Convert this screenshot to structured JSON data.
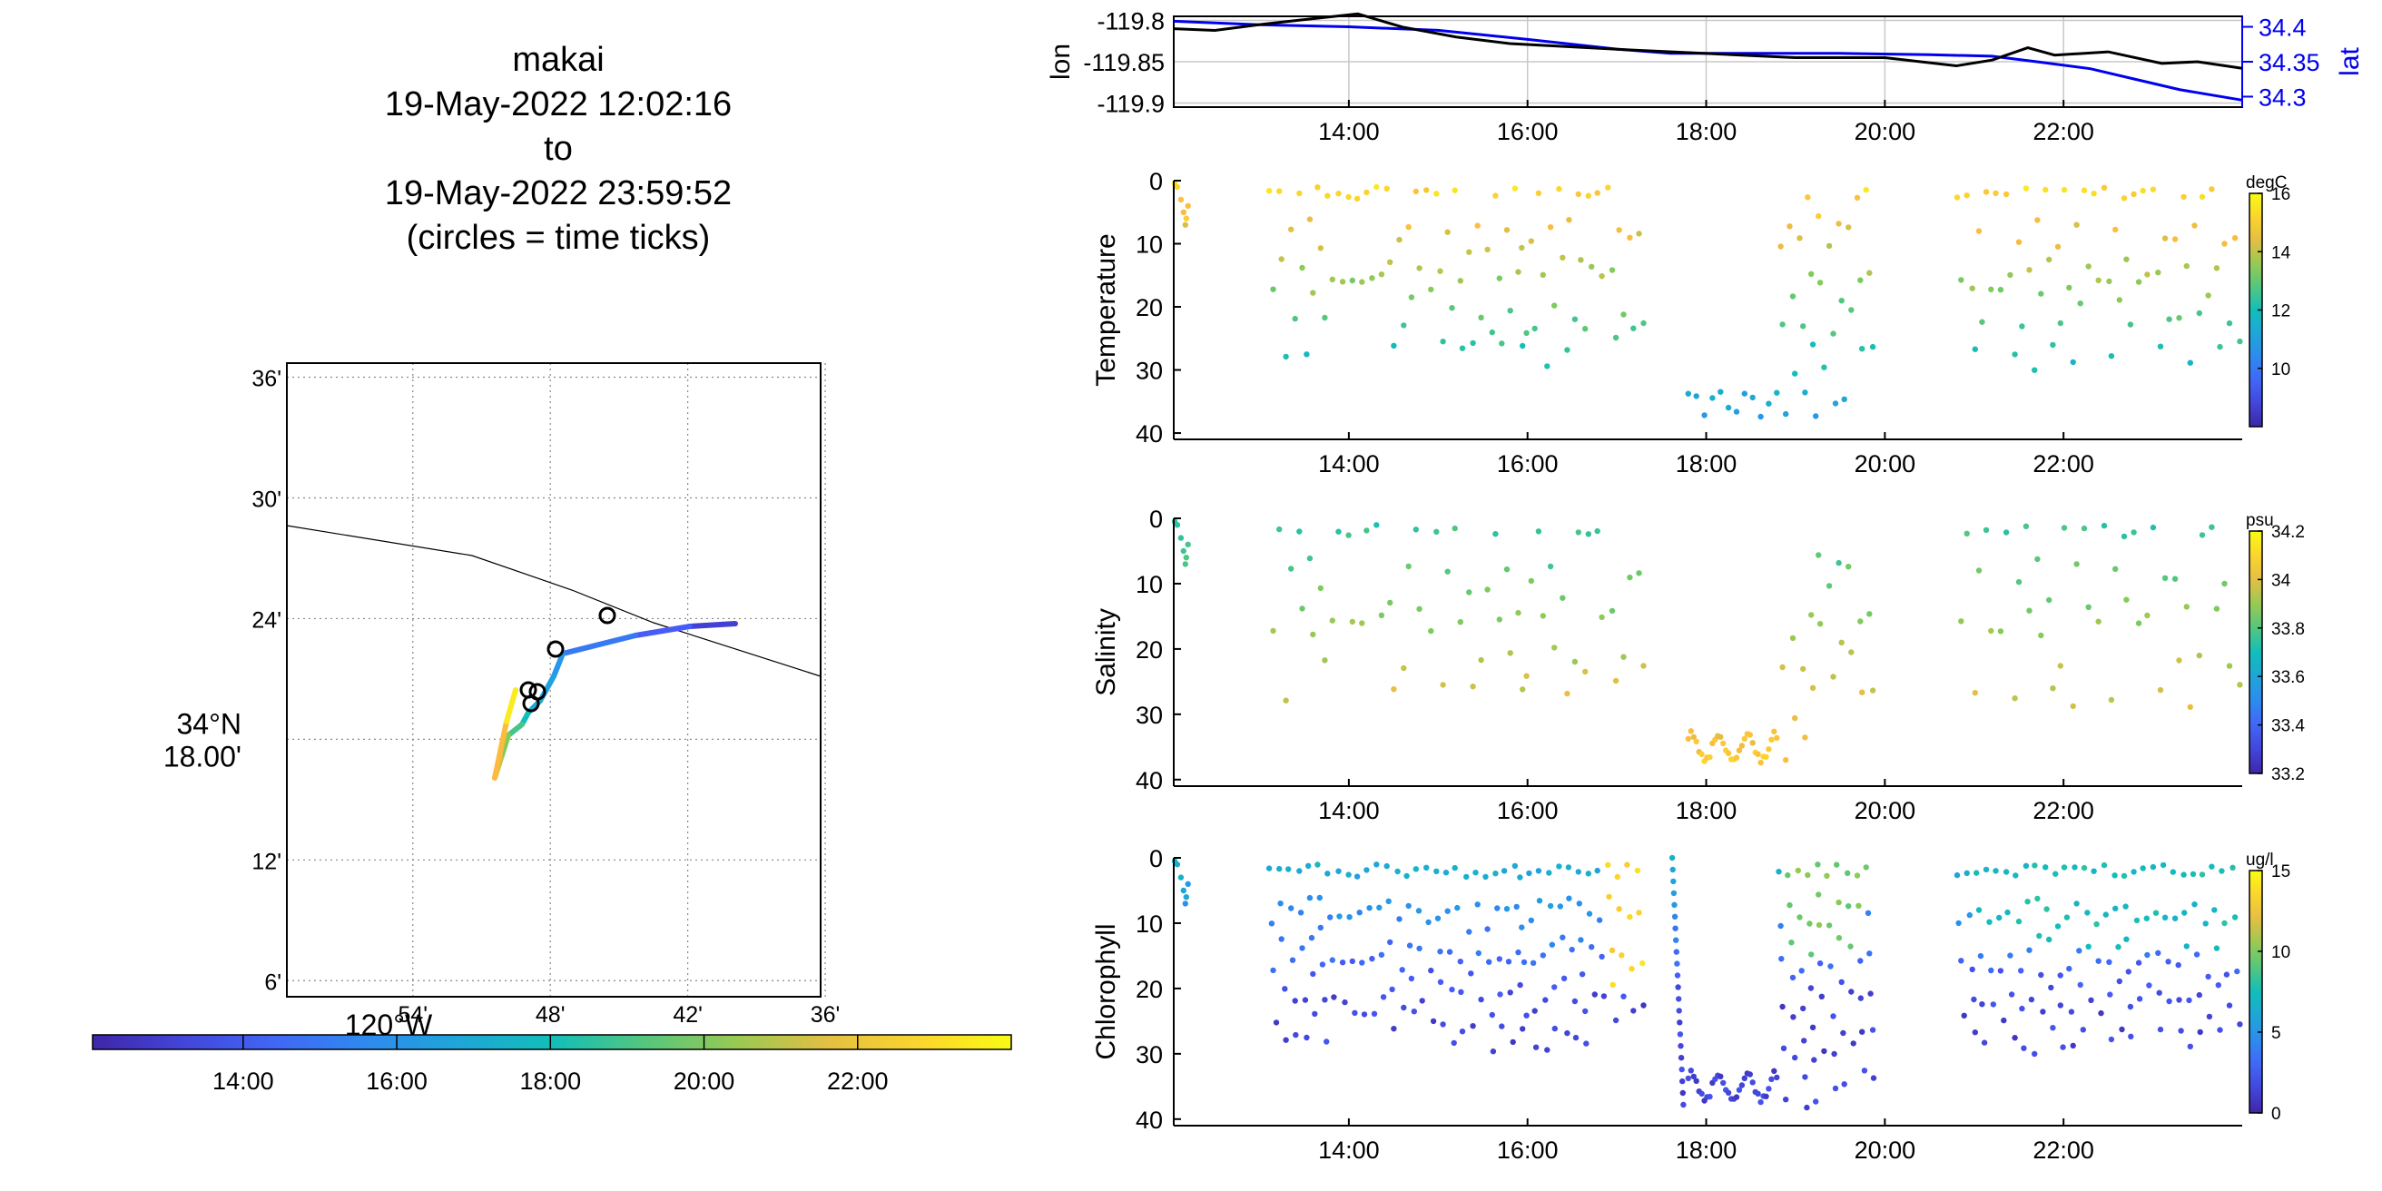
{
  "title": {
    "lines": [
      "makai",
      "19-May-2022 12:02:16",
      "to",
      "19-May-2022 23:59:52",
      "(circles = time ticks)"
    ]
  },
  "map": {
    "lat_ticks": [
      "36'",
      "30'",
      "24'",
      "34°N\n18.00'",
      "12'",
      "6'"
    ],
    "lat_tick_values": [
      36,
      30,
      24,
      18,
      12,
      6
    ],
    "lon_ticks": [
      "54'",
      "48'",
      "42'",
      "36'"
    ],
    "lon_tick_values": [
      -54,
      -48,
      -42,
      -36
    ],
    "lon_center_label": "120°W",
    "colorbar_ticks": [
      "14:00",
      "16:00",
      "18:00",
      "20:00",
      "22:00"
    ],
    "colorbar_tick_values": [
      14,
      16,
      18,
      20,
      22
    ]
  },
  "time_axis": {
    "start_hour": 12.04,
    "end_hour": 24.0,
    "tick_labels": [
      "14:00",
      "16:00",
      "18:00",
      "20:00",
      "22:00"
    ],
    "tick_values": [
      14,
      16,
      18,
      20,
      22
    ]
  },
  "chart_data": [
    {
      "type": "line",
      "ylabel": "lon",
      "y2label": "lat",
      "y_ticks": [
        "-119.8",
        "-119.85",
        "-119.9"
      ],
      "y_tick_values": [
        -119.8,
        -119.85,
        -119.9
      ],
      "ylim": [
        -119.905,
        -119.795
      ],
      "y2_ticks": [
        "34.4",
        "34.35",
        "34.3"
      ],
      "y2_tick_values": [
        34.4,
        34.35,
        34.3
      ],
      "y2lim": [
        34.285,
        34.415
      ],
      "grid": true,
      "series": [
        {
          "name": "lon",
          "color": "#000000",
          "x": [
            12.04,
            12.5,
            13.0,
            13.5,
            14.1,
            14.6,
            15.2,
            15.8,
            16.5,
            17.2,
            18.0,
            19.0,
            20.0,
            20.8,
            21.2,
            21.6,
            21.9,
            22.5,
            23.1,
            23.5,
            24.0
          ],
          "y": [
            -119.81,
            -119.812,
            -119.805,
            -119.799,
            -119.792,
            -119.808,
            -119.82,
            -119.828,
            -119.832,
            -119.836,
            -119.84,
            -119.845,
            -119.845,
            -119.855,
            -119.848,
            -119.833,
            -119.842,
            -119.838,
            -119.852,
            -119.85,
            -119.858
          ]
        },
        {
          "name": "lat",
          "color": "#0000ee",
          "x": [
            12.04,
            13.0,
            14.0,
            15.0,
            16.0,
            17.0,
            17.6,
            18.5,
            19.5,
            20.5,
            21.2,
            21.7,
            22.3,
            22.8,
            23.3,
            24.0
          ],
          "y2": [
            34.408,
            34.403,
            34.4,
            34.395,
            34.382,
            34.368,
            34.362,
            34.362,
            34.362,
            34.36,
            34.358,
            34.35,
            34.34,
            34.325,
            34.31,
            34.295
          ]
        }
      ]
    },
    {
      "type": "scatter",
      "ylabel": "Temperature",
      "units": "degC",
      "ylim": [
        0,
        41
      ],
      "y_ticks": [
        "0",
        "10",
        "20",
        "30",
        "40"
      ],
      "y_tick_values": [
        0,
        10,
        20,
        30,
        40
      ],
      "clim": [
        8,
        16
      ],
      "cbar_ticks": [
        "16",
        "14",
        "12",
        "10"
      ],
      "cbar_tick_values": [
        16,
        14,
        12,
        10
      ],
      "colormap": "parula"
    },
    {
      "type": "scatter",
      "ylabel": "Salinity",
      "units": "psu",
      "ylim": [
        0,
        41
      ],
      "y_ticks": [
        "0",
        "10",
        "20",
        "30",
        "40"
      ],
      "y_tick_values": [
        0,
        10,
        20,
        30,
        40
      ],
      "clim": [
        33.2,
        34.2
      ],
      "cbar_ticks": [
        "34.2",
        "34",
        "33.8",
        "33.6",
        "33.4",
        "33.2"
      ],
      "cbar_tick_values": [
        34.2,
        34.0,
        33.8,
        33.6,
        33.4,
        33.2
      ],
      "colormap": "parula"
    },
    {
      "type": "scatter",
      "ylabel": "Chlorophyll",
      "units": "ug/l",
      "ylim": [
        0,
        41
      ],
      "y_ticks": [
        "0",
        "10",
        "20",
        "30",
        "40"
      ],
      "y_tick_values": [
        0,
        10,
        20,
        30,
        40
      ],
      "clim": [
        0,
        15
      ],
      "cbar_ticks": [
        "15",
        "10",
        "5",
        "0"
      ],
      "cbar_tick_values": [
        15,
        10,
        5,
        0
      ],
      "colormap": "parula"
    }
  ],
  "colors": {
    "lat_axis": "#0000ee",
    "grid": "#c8c8c8"
  }
}
